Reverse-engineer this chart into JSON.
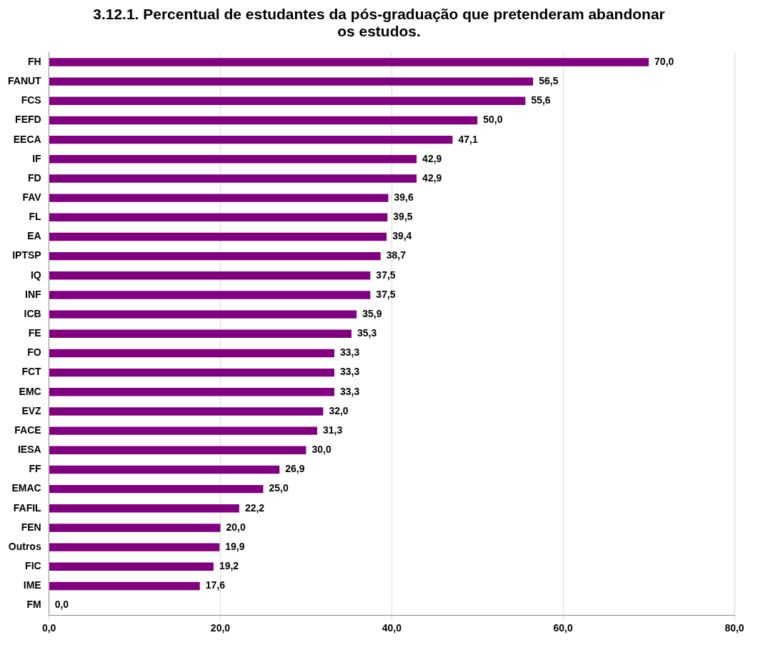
{
  "chart_data": {
    "type": "bar",
    "orientation": "horizontal",
    "title": "3.12.1. Percentual de estudantes da pós-graduação que pretenderam abandonar os estudos.",
    "categories": [
      "FH",
      "FANUT",
      "FCS",
      "FEFD",
      "EECA",
      "IF",
      "FD",
      "FAV",
      "FL",
      "EA",
      "IPTSP",
      "IQ",
      "INF",
      "ICB",
      "FE",
      "FO",
      "FCT",
      "EMC",
      "EVZ",
      "FACE",
      "IESA",
      "FF",
      "EMAC",
      "FAFIL",
      "FEN",
      "Outros",
      "FIC",
      "IME",
      "FM"
    ],
    "values": [
      70.0,
      56.5,
      55.6,
      50.0,
      47.1,
      42.9,
      42.9,
      39.6,
      39.5,
      39.4,
      38.7,
      37.5,
      37.5,
      35.9,
      35.3,
      33.3,
      33.3,
      33.3,
      32.0,
      31.3,
      30.0,
      26.9,
      25.0,
      22.2,
      20.0,
      19.9,
      19.2,
      17.6,
      0.0
    ],
    "value_labels": [
      "70,0",
      "56,5",
      "55,6",
      "50,0",
      "47,1",
      "42,9",
      "42,9",
      "39,6",
      "39,5",
      "39,4",
      "38,7",
      "37,5",
      "37,5",
      "35,9",
      "35,3",
      "33,3",
      "33,3",
      "33,3",
      "32,0",
      "31,3",
      "30,0",
      "26,9",
      "25,0",
      "22,2",
      "20,0",
      "19,9",
      "19,2",
      "17,6",
      "0,0"
    ],
    "color": "#800080",
    "xlim": [
      0,
      80
    ],
    "xticks": [
      {
        "value": 0,
        "label": "0,0"
      },
      {
        "value": 20,
        "label": "20,0"
      },
      {
        "value": 40,
        "label": "40,0"
      },
      {
        "value": 60,
        "label": "60,0"
      },
      {
        "value": 80,
        "label": "80,0"
      }
    ],
    "grid": "x",
    "legend": false
  }
}
